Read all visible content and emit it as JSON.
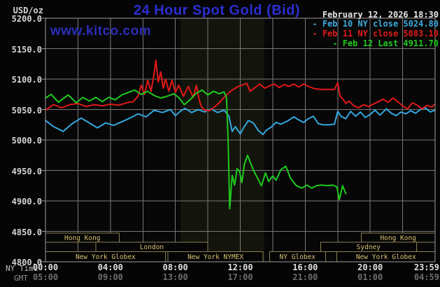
{
  "header": {
    "unit": "USD/oz",
    "title": "24 Hour Spot Gold (Bid)",
    "date": "February 12, 2026 18:30",
    "watermark": "www.kitco.com"
  },
  "axis_captions": {
    "ny": "NY Time",
    "gmt": "GMT"
  },
  "legend": {
    "items": [
      {
        "text": "- Feb 10 NY close 5024.80",
        "color": "#3fa9dc"
      },
      {
        "text": "- Feb 11 NY close 5083.10",
        "color": "#e11818"
      },
      {
        "text": "- Feb 12 Last 4911.70",
        "color": "#1ecb1e"
      }
    ]
  },
  "colors": {
    "background": "#050505",
    "plot_background": "#070707",
    "grid": "#787878",
    "frame": "#9c9c9c",
    "nymex_band": "#13150c",
    "session_border": "#8a8153",
    "session_text": "#d6c173",
    "series_feb10": "#35a7df",
    "series_feb11": "#e11818",
    "series_feb12": "#1ecb1e"
  },
  "chart_data": {
    "type": "line",
    "title": "24 Hour Spot Gold (Bid)",
    "ylabel": "USD/oz",
    "ylim": [
      4800,
      5200
    ],
    "grid": true,
    "legend_position": "top-right",
    "y_axis": {
      "tick_step": 50,
      "ticks": [
        {
          "value": 5200,
          "text": "5200.0"
        },
        {
          "value": 5150,
          "text": "5150.0"
        },
        {
          "value": 5100,
          "text": "5100.0"
        },
        {
          "value": 5050,
          "text": "5050.0"
        },
        {
          "value": 5000,
          "text": "5000.0"
        },
        {
          "value": 4950,
          "text": "4950.0"
        },
        {
          "value": 4900,
          "text": "4900.0"
        },
        {
          "value": 4850,
          "text": "4850.0"
        },
        {
          "value": 4800,
          "text": "4800.0"
        }
      ]
    },
    "x_axis": {
      "range_hours": [
        0,
        24
      ],
      "gridline_every_hours": 2,
      "rows": [
        {
          "name": "ny",
          "labels": [
            {
              "t": 0,
              "text": "00:00"
            },
            {
              "t": 4,
              "text": "04:00"
            },
            {
              "t": 8,
              "text": "08:00"
            },
            {
              "t": 12,
              "text": "12:00"
            },
            {
              "t": 16,
              "text": "16:00"
            },
            {
              "t": 20,
              "text": "20:00"
            },
            {
              "t": 24,
              "text": "23:59",
              "align": "right"
            }
          ]
        },
        {
          "name": "gmt",
          "labels": [
            {
              "t": 0,
              "text": "05:00"
            },
            {
              "t": 4,
              "text": "09:00"
            },
            {
              "t": 8,
              "text": "13:00"
            },
            {
              "t": 12,
              "text": "17:00"
            },
            {
              "t": 16,
              "text": "21:00"
            },
            {
              "t": 20,
              "text": "01:00"
            },
            {
              "t": 24,
              "text": "04:59",
              "align": "right"
            }
          ]
        }
      ]
    },
    "nymex_band_hours": [
      8.32,
      13.48
    ],
    "sessions": [
      {
        "label": "Hong Kong",
        "row": 1,
        "start": 0,
        "end": 4.55
      },
      {
        "label": "Hong Kong",
        "row": 1,
        "start": 19.45,
        "end": 24
      },
      {
        "label": "London",
        "row": 2,
        "start": 3.1,
        "end": 10
      },
      {
        "label": "Sydney",
        "row": 2,
        "start": 16.95,
        "end": 22.85
      },
      {
        "label": "New York Globex",
        "row": 3,
        "start": 0,
        "end": 7.4
      },
      {
        "label": "New York NYMEX",
        "row": 3,
        "start": 7.55,
        "end": 13.4
      },
      {
        "label": "NY Globex",
        "row": 3,
        "start": 13.8,
        "end": 17.25
      },
      {
        "label": "New York Globex",
        "row": 3,
        "start": 17.95,
        "end": 24
      }
    ],
    "series": [
      {
        "name": "Feb 10",
        "close_label": "NY close 5024.80",
        "close": 5024.8,
        "color": "#35a7df",
        "points": [
          [
            0,
            5032
          ],
          [
            0.5,
            5022
          ],
          [
            1.1,
            5014
          ],
          [
            1.6,
            5026
          ],
          [
            2.2,
            5036
          ],
          [
            2.7,
            5028
          ],
          [
            3.2,
            5020
          ],
          [
            3.7,
            5028
          ],
          [
            4.2,
            5024
          ],
          [
            4.7,
            5030
          ],
          [
            5.2,
            5036
          ],
          [
            5.7,
            5043
          ],
          [
            6.2,
            5038
          ],
          [
            6.7,
            5049
          ],
          [
            7.2,
            5045
          ],
          [
            7.7,
            5050
          ],
          [
            8,
            5040
          ],
          [
            8.3,
            5047
          ],
          [
            8.6,
            5052
          ],
          [
            9,
            5045
          ],
          [
            9.4,
            5050
          ],
          [
            9.8,
            5046
          ],
          [
            10.2,
            5051
          ],
          [
            10.6,
            5045
          ],
          [
            11,
            5049
          ],
          [
            11.3,
            5039
          ],
          [
            11.5,
            5014
          ],
          [
            11.7,
            5022
          ],
          [
            12,
            5010
          ],
          [
            12.2,
            5020
          ],
          [
            12.5,
            5032
          ],
          [
            12.8,
            5028
          ],
          [
            13.1,
            5016
          ],
          [
            13.4,
            5009
          ],
          [
            13.6,
            5016
          ],
          [
            13.9,
            5021
          ],
          [
            14.2,
            5029
          ],
          [
            14.5,
            5026
          ],
          [
            14.9,
            5031
          ],
          [
            15.3,
            5038
          ],
          [
            15.6,
            5033
          ],
          [
            15.9,
            5029
          ],
          [
            16.2,
            5035
          ],
          [
            16.5,
            5039
          ],
          [
            16.8,
            5027
          ],
          [
            17.1,
            5025
          ],
          [
            17.5,
            5025
          ],
          [
            17.8,
            5026
          ],
          [
            18,
            5047
          ],
          [
            18.2,
            5039
          ],
          [
            18.5,
            5035
          ],
          [
            18.8,
            5047
          ],
          [
            19.1,
            5039
          ],
          [
            19.4,
            5046
          ],
          [
            19.7,
            5037
          ],
          [
            20,
            5042
          ],
          [
            20.3,
            5049
          ],
          [
            20.6,
            5041
          ],
          [
            21,
            5051
          ],
          [
            21.3,
            5044
          ],
          [
            21.6,
            5040
          ],
          [
            21.9,
            5046
          ],
          [
            22.2,
            5043
          ],
          [
            22.5,
            5048
          ],
          [
            22.8,
            5044
          ],
          [
            23.1,
            5050
          ],
          [
            23.4,
            5053
          ],
          [
            23.7,
            5046
          ],
          [
            24,
            5049
          ]
        ]
      },
      {
        "name": "Feb 11",
        "close_label": "NY close 5083.10",
        "close": 5083.1,
        "color": "#e11818",
        "points": [
          [
            0,
            5049
          ],
          [
            0.5,
            5058
          ],
          [
            1,
            5053
          ],
          [
            1.5,
            5058
          ],
          [
            2,
            5060
          ],
          [
            2.5,
            5055
          ],
          [
            3,
            5058
          ],
          [
            3.5,
            5056
          ],
          [
            4,
            5059
          ],
          [
            4.5,
            5057
          ],
          [
            5,
            5061
          ],
          [
            5.4,
            5063
          ],
          [
            5.7,
            5072
          ],
          [
            5.9,
            5090
          ],
          [
            6.1,
            5075
          ],
          [
            6.3,
            5098
          ],
          [
            6.5,
            5080
          ],
          [
            6.7,
            5110
          ],
          [
            6.8,
            5131
          ],
          [
            6.95,
            5095
          ],
          [
            7.1,
            5112
          ],
          [
            7.25,
            5085
          ],
          [
            7.4,
            5100
          ],
          [
            7.6,
            5080
          ],
          [
            7.8,
            5098
          ],
          [
            8,
            5078
          ],
          [
            8.2,
            5090
          ],
          [
            8.5,
            5072
          ],
          [
            8.8,
            5088
          ],
          [
            9.1,
            5070
          ],
          [
            9.3,
            5090
          ],
          [
            9.45,
            5068
          ],
          [
            9.6,
            5055
          ],
          [
            9.8,
            5049
          ],
          [
            10.1,
            5048
          ],
          [
            10.4,
            5054
          ],
          [
            10.7,
            5061
          ],
          [
            11,
            5070
          ],
          [
            11.4,
            5080
          ],
          [
            11.8,
            5087
          ],
          [
            12.1,
            5090
          ],
          [
            12.4,
            5093
          ],
          [
            12.6,
            5080
          ],
          [
            12.9,
            5086
          ],
          [
            13.2,
            5092
          ],
          [
            13.5,
            5085
          ],
          [
            13.8,
            5089
          ],
          [
            14.1,
            5092
          ],
          [
            14.4,
            5086
          ],
          [
            14.7,
            5091
          ],
          [
            15,
            5088
          ],
          [
            15.3,
            5092
          ],
          [
            15.6,
            5087
          ],
          [
            15.9,
            5092
          ],
          [
            16.2,
            5088
          ],
          [
            16.6,
            5084
          ],
          [
            17,
            5083
          ],
          [
            17.4,
            5083
          ],
          [
            17.8,
            5083
          ],
          [
            18,
            5094
          ],
          [
            18.15,
            5072
          ],
          [
            18.3,
            5068
          ],
          [
            18.5,
            5060
          ],
          [
            18.7,
            5064
          ],
          [
            19,
            5056
          ],
          [
            19.3,
            5053
          ],
          [
            19.6,
            5058
          ],
          [
            19.9,
            5055
          ],
          [
            20.2,
            5059
          ],
          [
            20.5,
            5063
          ],
          [
            20.8,
            5067
          ],
          [
            21.1,
            5062
          ],
          [
            21.4,
            5069
          ],
          [
            21.7,
            5063
          ],
          [
            22,
            5056
          ],
          [
            22.3,
            5051
          ],
          [
            22.6,
            5061
          ],
          [
            22.9,
            5057
          ],
          [
            23.2,
            5051
          ],
          [
            23.5,
            5057
          ],
          [
            23.8,
            5054
          ],
          [
            24,
            5059
          ]
        ]
      },
      {
        "name": "Feb 12",
        "close_label": "Last 4911.70",
        "last": 4911.7,
        "color": "#1ecb1e",
        "points": [
          [
            0,
            5069
          ],
          [
            0.35,
            5075
          ],
          [
            0.8,
            5062
          ],
          [
            1.4,
            5074
          ],
          [
            1.9,
            5061
          ],
          [
            2.3,
            5070
          ],
          [
            2.7,
            5064
          ],
          [
            3.1,
            5070
          ],
          [
            3.5,
            5063
          ],
          [
            3.9,
            5070
          ],
          [
            4.3,
            5066
          ],
          [
            4.7,
            5074
          ],
          [
            5.1,
            5078
          ],
          [
            5.5,
            5082
          ],
          [
            5.9,
            5075
          ],
          [
            6.3,
            5080
          ],
          [
            6.7,
            5073
          ],
          [
            7.1,
            5069
          ],
          [
            7.5,
            5072
          ],
          [
            7.9,
            5076
          ],
          [
            8.2,
            5070
          ],
          [
            8.55,
            5058
          ],
          [
            8.9,
            5066
          ],
          [
            9.3,
            5077
          ],
          [
            9.65,
            5082
          ],
          [
            10,
            5074
          ],
          [
            10.35,
            5080
          ],
          [
            10.7,
            5076
          ],
          [
            11,
            5079
          ],
          [
            11.15,
            5070
          ],
          [
            11.25,
            5000
          ],
          [
            11.35,
            4887
          ],
          [
            11.5,
            4942
          ],
          [
            11.65,
            4926
          ],
          [
            11.8,
            4953
          ],
          [
            11.95,
            4949
          ],
          [
            12.1,
            4930
          ],
          [
            12.25,
            4960
          ],
          [
            12.45,
            4975
          ],
          [
            12.65,
            4961
          ],
          [
            12.85,
            4948
          ],
          [
            13.05,
            4938
          ],
          [
            13.3,
            4925
          ],
          [
            13.55,
            4946
          ],
          [
            13.75,
            4932
          ],
          [
            14,
            4941
          ],
          [
            14.2,
            4934
          ],
          [
            14.5,
            4951
          ],
          [
            14.8,
            4957
          ],
          [
            15.1,
            4937
          ],
          [
            15.45,
            4925
          ],
          [
            15.8,
            4921
          ],
          [
            16.1,
            4926
          ],
          [
            16.4,
            4921
          ],
          [
            16.7,
            4925
          ],
          [
            17,
            4926
          ],
          [
            17.35,
            4925
          ],
          [
            17.7,
            4926
          ],
          [
            17.95,
            4923
          ],
          [
            18.1,
            4902
          ],
          [
            18.3,
            4925
          ],
          [
            18.5,
            4912
          ]
        ]
      }
    ]
  }
}
